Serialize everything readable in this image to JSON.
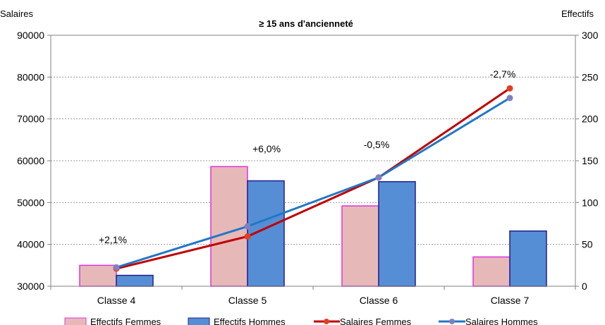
{
  "chart_data": {
    "type": "bar",
    "title": "≥ 15 ans d'ancienneté",
    "categories": [
      "Classe 4",
      "Classe 5",
      "Classe 6",
      "Classe 7"
    ],
    "y_left": {
      "label": "Salaires",
      "range": [
        30000,
        90000
      ],
      "ticks": [
        "30000",
        "40000",
        "50000",
        "60000",
        "70000",
        "80000",
        "90000"
      ]
    },
    "y_right": {
      "label": "Effectifs",
      "range": [
        0,
        300
      ],
      "ticks": [
        "0",
        "50",
        "100",
        "150",
        "200",
        "250",
        "300"
      ]
    },
    "bar_series": [
      {
        "name": "Effectifs Femmes",
        "axis": "right",
        "color": "#e6b9b8",
        "stroke": "#e030e0",
        "values": [
          25,
          143,
          96,
          35
        ]
      },
      {
        "name": "Effectifs Hommes",
        "axis": "right",
        "color": "#558ed5",
        "stroke": "#1f1f8f",
        "values": [
          13,
          126,
          125,
          66
        ]
      }
    ],
    "line_series": [
      {
        "name": "Salaires Femmes",
        "axis": "left",
        "color": "#c00000",
        "marker": "#e04020",
        "values": [
          34200,
          41900,
          56000,
          77300
        ]
      },
      {
        "name": "Salaires Hommes",
        "axis": "left",
        "color": "#1f77c8",
        "marker": "#8080c0",
        "values": [
          34500,
          44300,
          56000,
          75000
        ]
      }
    ],
    "annotations": [
      "+2,1%",
      "+6,0%",
      "-0,5%",
      "-2,7%"
    ],
    "grid": true,
    "legend": "bottom"
  }
}
